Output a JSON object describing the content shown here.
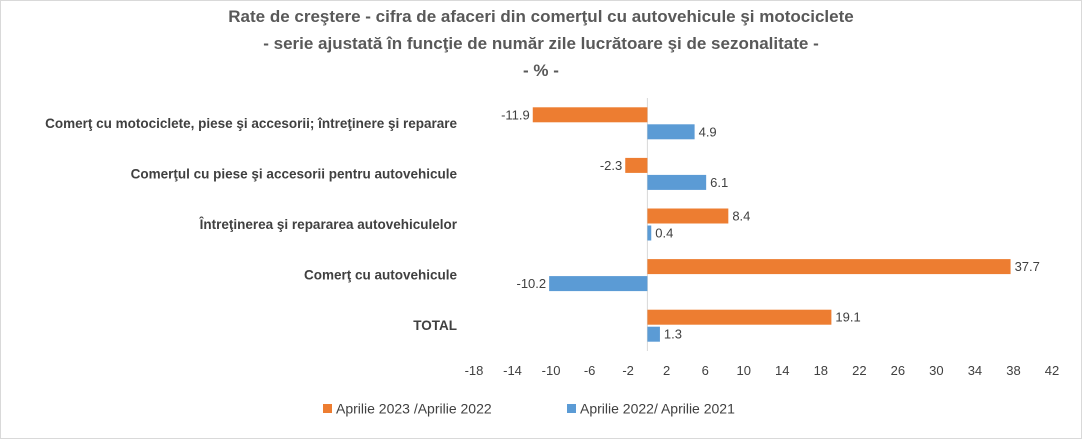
{
  "chart_data": {
    "type": "bar",
    "orientation": "horizontal",
    "title": [
      "Rate de creştere - cifra de afaceri din comerţul cu autovehicule şi motociclete",
      "- serie ajustată în funcţie de număr zile lucrătoare şi de sezonalitate -",
      "- % -"
    ],
    "categories": [
      "Comerţ cu motociclete, piese şi accesorii; întreţinere şi reparare",
      "Comerţul cu piese şi accesorii pentru autovehicule",
      "Întreţinerea şi repararea autovehiculelor",
      "Comerţ cu autovehicule",
      "TOTAL"
    ],
    "series": [
      {
        "name": "Aprilie 2023 /Aprilie 2022",
        "color": "#ED7D31",
        "values": [
          -11.9,
          -2.3,
          8.4,
          37.7,
          19.1
        ]
      },
      {
        "name": "Aprilie 2022/ Aprilie 2021",
        "color": "#5B9BD5",
        "values": [
          4.9,
          6.1,
          0.4,
          -10.2,
          1.3
        ]
      }
    ],
    "xlim": [
      -18,
      42
    ],
    "xticks": [
      "-18",
      "-14",
      "-10",
      "-6",
      "-2",
      "2",
      "6",
      "10",
      "14",
      "18",
      "22",
      "26",
      "30",
      "34",
      "38",
      "42"
    ],
    "grid": false,
    "legend_position": "bottom"
  }
}
